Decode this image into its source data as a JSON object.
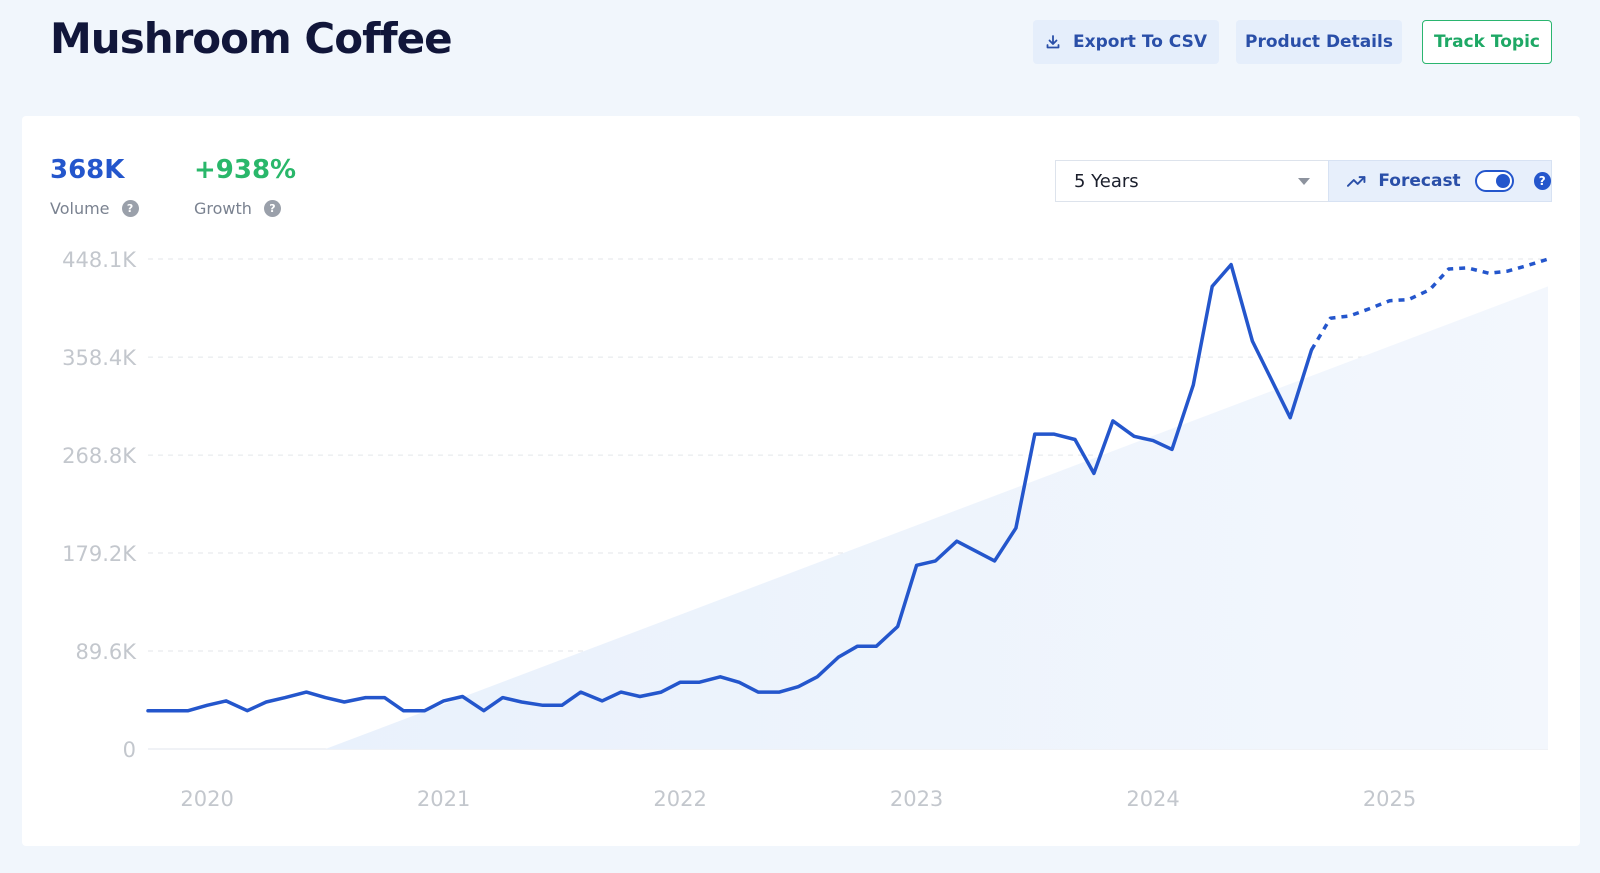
{
  "header": {
    "title": "Mushroom Coffee",
    "export_label": "Export To CSV",
    "product_label": "Product Details",
    "track_label": "Track Topic"
  },
  "stats": {
    "volume_value": "368K",
    "volume_label": "Volume",
    "growth_value": "+938%",
    "growth_label": "Growth"
  },
  "controls": {
    "range_selected": "5 Years",
    "forecast_label": "Forecast",
    "forecast_enabled": true
  },
  "icons": {
    "export": "download-icon",
    "forecast": "trend-up-icon",
    "help": "question-mark-icon",
    "caret": "caret-down-icon"
  },
  "colors": {
    "line": "#2456cc",
    "trend_fill": "#e9f1fc",
    "growth": "#29b76a",
    "track_border": "#2ab56f"
  },
  "chart_data": {
    "type": "line",
    "title": "",
    "xlabel": "",
    "ylabel": "",
    "y_tick_labels": [
      "0",
      "89.6K",
      "179.2K",
      "268.8K",
      "358.4K",
      "448.1K"
    ],
    "y_tick_values": [
      0,
      89600,
      179200,
      268800,
      358400,
      448100
    ],
    "ylim": [
      0,
      448100
    ],
    "x_tick_labels": [
      "2020",
      "2021",
      "2022",
      "2023",
      "2024",
      "2025"
    ],
    "x_tick_values": [
      2020,
      2021,
      2022,
      2023,
      2024,
      2025
    ],
    "xlim": [
      2019.75,
      2025.67
    ],
    "grid": true,
    "series": [
      {
        "style": "solid",
        "points": [
          [
            2019.75,
            35000
          ],
          [
            2019.83,
            35000
          ],
          [
            2019.92,
            35000
          ],
          [
            2020.0,
            40000
          ],
          [
            2020.08,
            44000
          ],
          [
            2020.17,
            35000
          ],
          [
            2020.25,
            43000
          ],
          [
            2020.33,
            47000
          ],
          [
            2020.42,
            52000
          ],
          [
            2020.5,
            47000
          ],
          [
            2020.58,
            43000
          ],
          [
            2020.67,
            47000
          ],
          [
            2020.75,
            47000
          ],
          [
            2020.83,
            35000
          ],
          [
            2020.92,
            35000
          ],
          [
            2021.0,
            44000
          ],
          [
            2021.08,
            48000
          ],
          [
            2021.17,
            35000
          ],
          [
            2021.25,
            47000
          ],
          [
            2021.33,
            43000
          ],
          [
            2021.42,
            40000
          ],
          [
            2021.5,
            40000
          ],
          [
            2021.58,
            52000
          ],
          [
            2021.67,
            44000
          ],
          [
            2021.75,
            52000
          ],
          [
            2021.83,
            48000
          ],
          [
            2021.92,
            52000
          ],
          [
            2022.0,
            61000
          ],
          [
            2022.08,
            61000
          ],
          [
            2022.17,
            66000
          ],
          [
            2022.25,
            61000
          ],
          [
            2022.33,
            52000
          ],
          [
            2022.42,
            52000
          ],
          [
            2022.5,
            57000
          ],
          [
            2022.58,
            66000
          ],
          [
            2022.67,
            84000
          ],
          [
            2022.75,
            94000
          ],
          [
            2022.83,
            94000
          ],
          [
            2022.92,
            112000
          ],
          [
            2023.0,
            168000
          ],
          [
            2023.08,
            172000
          ],
          [
            2023.17,
            190000
          ],
          [
            2023.25,
            181000
          ],
          [
            2023.33,
            172000
          ],
          [
            2023.42,
            202000
          ],
          [
            2023.5,
            288000
          ],
          [
            2023.58,
            288000
          ],
          [
            2023.67,
            283000
          ],
          [
            2023.75,
            252000
          ],
          [
            2023.83,
            300000
          ],
          [
            2023.92,
            286000
          ],
          [
            2024.0,
            282000
          ],
          [
            2024.08,
            274000
          ],
          [
            2024.17,
            333000
          ],
          [
            2024.25,
            423000
          ],
          [
            2024.33,
            443000
          ],
          [
            2024.42,
            373000
          ],
          [
            2024.5,
            338000
          ],
          [
            2024.58,
            303000
          ],
          [
            2024.67,
            365000
          ]
        ]
      },
      {
        "style": "dotted",
        "points": [
          [
            2024.67,
            365000
          ],
          [
            2024.75,
            394000
          ],
          [
            2024.83,
            396000
          ],
          [
            2024.92,
            403000
          ],
          [
            2025.0,
            410000
          ],
          [
            2025.08,
            411000
          ],
          [
            2025.17,
            420000
          ],
          [
            2025.25,
            439000
          ],
          [
            2025.33,
            440000
          ],
          [
            2025.42,
            435000
          ],
          [
            2025.5,
            437000
          ],
          [
            2025.58,
            442000
          ],
          [
            2025.67,
            448000
          ]
        ]
      }
    ],
    "trend_area": {
      "points": [
        [
          2020.5,
          0
        ],
        [
          2025.67,
          423000
        ],
        [
          2025.67,
          0
        ]
      ]
    }
  }
}
